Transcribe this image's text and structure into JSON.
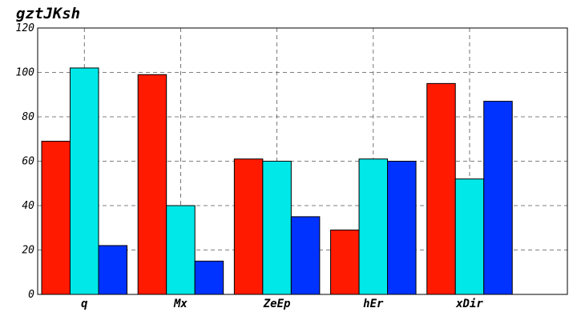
{
  "chart_data": {
    "type": "bar",
    "title": "gztJKsh",
    "xlabel": "",
    "ylabel": "",
    "categories": [
      "q",
      "Mx",
      "ZeEp",
      "hEr",
      "xDir"
    ],
    "series": [
      {
        "values": [
          69,
          99,
          61,
          29,
          95
        ],
        "color": "#ff1a00"
      },
      {
        "values": [
          102,
          40,
          60,
          61,
          52
        ],
        "color": "#00e8e8"
      },
      {
        "values": [
          22,
          15,
          35,
          60,
          87
        ],
        "color": "#0033ff"
      }
    ],
    "ylim": [
      0,
      120
    ],
    "yticks": [
      0,
      20,
      40,
      60,
      80,
      100,
      120
    ],
    "grid": true
  }
}
